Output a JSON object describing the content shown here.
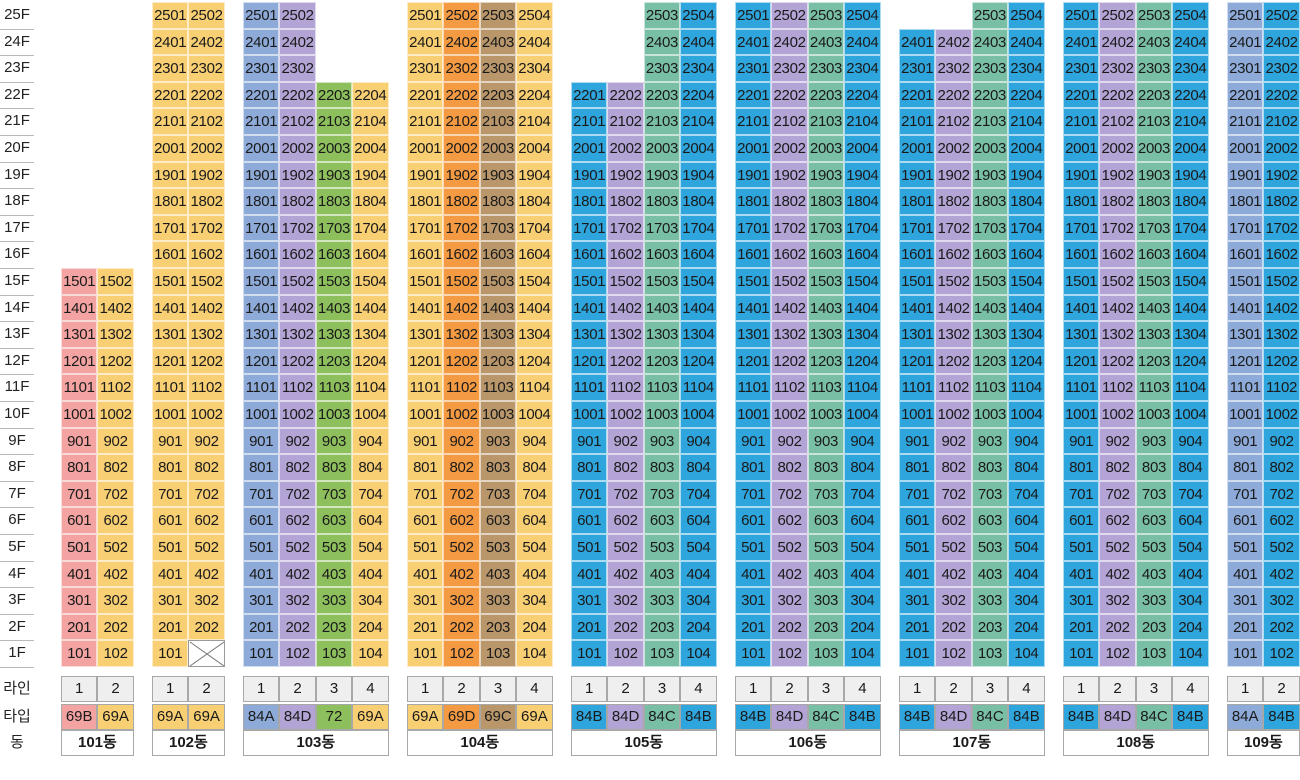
{
  "floors": [
    "25F",
    "24F",
    "23F",
    "22F",
    "21F",
    "20F",
    "19F",
    "18F",
    "17F",
    "16F",
    "15F",
    "14F",
    "13F",
    "12F",
    "11F",
    "10F",
    "9F",
    "8F",
    "7F",
    "6F",
    "5F",
    "4F",
    "3F",
    "2F",
    "1F"
  ],
  "row_labels": {
    "line": "라인",
    "type": "타입",
    "dong": "동"
  },
  "type_colors": {
    "69B": "#f3a3a1",
    "69A": "#f9cf73",
    "84A": "#8eaad9",
    "84D": "#b4a4d6",
    "72": "#8dbf5c",
    "69D": "#f39a43",
    "69C": "#b9976b",
    "84B": "#2ea5dd",
    "84C": "#79bfa6"
  },
  "buildings": [
    {
      "dong": "101동",
      "lines": [
        {
          "line": "1",
          "type": "69B",
          "max": 15
        },
        {
          "line": "2",
          "type": "69A",
          "max": 15
        }
      ]
    },
    {
      "dong": "102동",
      "lines": [
        {
          "line": "1",
          "type": "69A",
          "max": 25
        },
        {
          "line": "2",
          "type": "69A",
          "max": 25,
          "empty_floors": [
            1
          ]
        }
      ]
    },
    {
      "dong": "103동",
      "lines": [
        {
          "line": "1",
          "type": "84A",
          "max": 25
        },
        {
          "line": "2",
          "type": "84D",
          "max": 25
        },
        {
          "line": "3",
          "type": "72",
          "max": 22
        },
        {
          "line": "4",
          "type": "69A",
          "max": 22
        }
      ]
    },
    {
      "dong": "104동",
      "lines": [
        {
          "line": "1",
          "type": "69A",
          "max": 25
        },
        {
          "line": "2",
          "type": "69D",
          "max": 25
        },
        {
          "line": "3",
          "type": "69C",
          "max": 25
        },
        {
          "line": "4",
          "type": "69A",
          "max": 25
        }
      ]
    },
    {
      "dong": "105동",
      "lines": [
        {
          "line": "1",
          "type": "84B",
          "max": 22
        },
        {
          "line": "2",
          "type": "84D",
          "max": 22
        },
        {
          "line": "3",
          "type": "84C",
          "max": 25
        },
        {
          "line": "4",
          "type": "84B",
          "max": 25
        }
      ]
    },
    {
      "dong": "106동",
      "lines": [
        {
          "line": "1",
          "type": "84B",
          "max": 25
        },
        {
          "line": "2",
          "type": "84D",
          "max": 25
        },
        {
          "line": "3",
          "type": "84C",
          "max": 25
        },
        {
          "line": "4",
          "type": "84B",
          "max": 25
        }
      ]
    },
    {
      "dong": "107동",
      "lines": [
        {
          "line": "1",
          "type": "84B",
          "max": 24
        },
        {
          "line": "2",
          "type": "84D",
          "max": 24
        },
        {
          "line": "3",
          "type": "84C",
          "max": 25
        },
        {
          "line": "4",
          "type": "84B",
          "max": 25
        }
      ]
    },
    {
      "dong": "108동",
      "lines": [
        {
          "line": "1",
          "type": "84B",
          "max": 25
        },
        {
          "line": "2",
          "type": "84D",
          "max": 25
        },
        {
          "line": "3",
          "type": "84C",
          "max": 25
        },
        {
          "line": "4",
          "type": "84B",
          "max": 25
        }
      ]
    },
    {
      "dong": "109동",
      "lines": [
        {
          "line": "1",
          "type": "84A",
          "max": 25
        },
        {
          "line": "2",
          "type": "84B",
          "max": 25
        }
      ]
    }
  ]
}
